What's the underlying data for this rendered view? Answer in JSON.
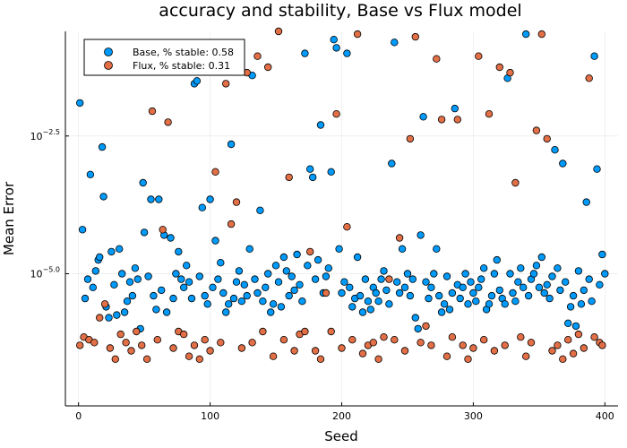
{
  "chart_data": {
    "type": "scatter",
    "title": "accuracy and stability, Base vs Flux model",
    "xlabel": "Seed",
    "ylabel": "Mean Error",
    "xlim": [
      -10,
      410
    ],
    "ylim": [
      -7.4,
      -0.6
    ],
    "log_scale_y": true,
    "grid": true,
    "legend_position": "top-left",
    "x_ticks": [
      0,
      100,
      200,
      300,
      400
    ],
    "x_tick_labels": [
      "0",
      "100",
      "200",
      "300",
      "400"
    ],
    "y_ticks": [
      -2.5,
      -5.0
    ],
    "y_tick_labels": [
      "10^{-2.5}",
      "10^{-5.0}"
    ],
    "series": [
      {
        "name": "Base, % stable: 0.58",
        "color": "#009AFA",
        "points": [
          [
            1,
            -1.9
          ],
          [
            3,
            -4.2
          ],
          [
            5,
            -5.45
          ],
          [
            7,
            -5.1
          ],
          [
            9,
            -3.2
          ],
          [
            11,
            -5.25
          ],
          [
            13,
            -4.95
          ],
          [
            15,
            -4.75
          ],
          [
            16,
            -4.7
          ],
          [
            18,
            -2.7
          ],
          [
            19,
            -3.6
          ],
          [
            21,
            -5.6
          ],
          [
            23,
            -5.8
          ],
          [
            25,
            -4.6
          ],
          [
            27,
            -5.2
          ],
          [
            29,
            -5.75
          ],
          [
            31,
            -4.55
          ],
          [
            33,
            -5.0
          ],
          [
            35,
            -5.7
          ],
          [
            37,
            -5.5
          ],
          [
            39,
            -5.15
          ],
          [
            41,
            -5.4
          ],
          [
            43,
            -4.9
          ],
          [
            45,
            -5.1
          ],
          [
            47,
            -6.0
          ],
          [
            49,
            -3.35
          ],
          [
            50,
            -4.25
          ],
          [
            52,
            -1.3
          ],
          [
            53,
            -5.05
          ],
          [
            55,
            -3.65
          ],
          [
            57,
            -5.4
          ],
          [
            59,
            -5.65
          ],
          [
            61,
            -3.65
          ],
          [
            63,
            -5.3
          ],
          [
            65,
            -4.3
          ],
          [
            67,
            -5.7
          ],
          [
            70,
            -4.35
          ],
          [
            72,
            -5.45
          ],
          [
            74,
            -5.0
          ],
          [
            76,
            -4.6
          ],
          [
            78,
            -5.1
          ],
          [
            80,
            -5.25
          ],
          [
            82,
            -4.85
          ],
          [
            84,
            -5.15
          ],
          [
            86,
            -5.45
          ],
          [
            88,
            -1.55
          ],
          [
            90,
            -1.5
          ],
          [
            92,
            -5.05
          ],
          [
            94,
            -3.8
          ],
          [
            96,
            -5.4
          ],
          [
            98,
            -5.55
          ],
          [
            100,
            -3.65
          ],
          [
            102,
            -5.25
          ],
          [
            104,
            -4.4
          ],
          [
            106,
            -5.1
          ],
          [
            108,
            -4.8
          ],
          [
            110,
            -5.35
          ],
          [
            112,
            -5.7
          ],
          [
            114,
            -5.55
          ],
          [
            116,
            -2.65
          ],
          [
            118,
            -5.45
          ],
          [
            120,
            -5.15
          ],
          [
            122,
            -4.95
          ],
          [
            124,
            -5.5
          ],
          [
            126,
            -5.2
          ],
          [
            128,
            -5.4
          ],
          [
            130,
            -4.55
          ],
          [
            132,
            -1.4
          ],
          [
            134,
            -5.1
          ],
          [
            136,
            -5.35
          ],
          [
            138,
            -3.85
          ],
          [
            140,
            -5.5
          ],
          [
            142,
            -5.25
          ],
          [
            144,
            -5.0
          ],
          [
            146,
            -5.7
          ],
          [
            148,
            -5.55
          ],
          [
            150,
            -4.85
          ],
          [
            152,
            -5.15
          ],
          [
            154,
            -5.6
          ],
          [
            156,
            -4.7
          ],
          [
            158,
            -4.95
          ],
          [
            160,
            -5.4
          ],
          [
            162,
            -5.05
          ],
          [
            164,
            -5.3
          ],
          [
            166,
            -4.65
          ],
          [
            168,
            -5.2
          ],
          [
            170,
            -5.5
          ],
          [
            172,
            -1.0
          ],
          [
            174,
            -4.85
          ],
          [
            176,
            -3.1
          ],
          [
            178,
            -3.25
          ],
          [
            180,
            -5.1
          ],
          [
            182,
            -4.75
          ],
          [
            184,
            -2.3
          ],
          [
            186,
            -5.35
          ],
          [
            188,
            -5.05
          ],
          [
            190,
            -4.9
          ],
          [
            192,
            -3.15
          ],
          [
            194,
            -0.75
          ],
          [
            196,
            -0.9
          ],
          [
            198,
            -4.55
          ],
          [
            200,
            -5.35
          ],
          [
            202,
            -5.15
          ],
          [
            204,
            -1.0
          ],
          [
            206,
            -5.25
          ],
          [
            208,
            -5.6
          ],
          [
            210,
            -5.45
          ],
          [
            212,
            -4.7
          ],
          [
            214,
            -5.4
          ],
          [
            216,
            -5.7
          ],
          [
            218,
            -5.1
          ],
          [
            220,
            -5.5
          ],
          [
            222,
            -5.65
          ],
          [
            224,
            -5.25
          ],
          [
            226,
            -5.35
          ],
          [
            228,
            -5.5
          ],
          [
            230,
            -5.1
          ],
          [
            232,
            -4.95
          ],
          [
            234,
            -5.3
          ],
          [
            236,
            -5.55
          ],
          [
            238,
            -3.0
          ],
          [
            240,
            -0.8
          ],
          [
            242,
            -5.15
          ],
          [
            244,
            -5.35
          ],
          [
            246,
            -4.55
          ],
          [
            248,
            -5.25
          ],
          [
            250,
            -5.0
          ],
          [
            252,
            -5.4
          ],
          [
            254,
            -5.1
          ],
          [
            256,
            -5.8
          ],
          [
            258,
            -6.0
          ],
          [
            260,
            -4.3
          ],
          [
            262,
            -2.15
          ],
          [
            264,
            -5.15
          ],
          [
            266,
            -5.45
          ],
          [
            268,
            -5.25
          ],
          [
            270,
            -5.0
          ],
          [
            272,
            -4.55
          ],
          [
            274,
            -5.4
          ],
          [
            276,
            -5.7
          ],
          [
            278,
            -5.55
          ],
          [
            280,
            -5.05
          ],
          [
            282,
            -5.65
          ],
          [
            284,
            -5.35
          ],
          [
            286,
            -2.0
          ],
          [
            288,
            -5.2
          ],
          [
            290,
            -5.45
          ],
          [
            292,
            -5.25
          ],
          [
            294,
            -5.0
          ],
          [
            296,
            -5.55
          ],
          [
            298,
            -5.15
          ],
          [
            300,
            -5.35
          ],
          [
            302,
            -5.5
          ],
          [
            304,
            -5.25
          ],
          [
            306,
            -5.1
          ],
          [
            308,
            -4.9
          ],
          [
            310,
            -5.65
          ],
          [
            312,
            -5.55
          ],
          [
            314,
            -5.4
          ],
          [
            316,
            -5.0
          ],
          [
            318,
            -4.75
          ],
          [
            320,
            -5.3
          ],
          [
            322,
            -5.45
          ],
          [
            324,
            -5.55
          ],
          [
            326,
            -1.45
          ],
          [
            328,
            -5.0
          ],
          [
            330,
            -5.35
          ],
          [
            332,
            -5.5
          ],
          [
            334,
            -5.15
          ],
          [
            336,
            -4.9
          ],
          [
            338,
            -5.25
          ],
          [
            340,
            -0.65
          ],
          [
            342,
            -5.4
          ],
          [
            344,
            -5.1
          ],
          [
            346,
            -5.0
          ],
          [
            348,
            -4.85
          ],
          [
            350,
            -5.25
          ],
          [
            352,
            -4.7
          ],
          [
            354,
            -5.35
          ],
          [
            356,
            -5.2
          ],
          [
            358,
            -5.45
          ],
          [
            360,
            -5.05
          ],
          [
            362,
            -2.75
          ],
          [
            364,
            -4.9
          ],
          [
            366,
            -5.3
          ],
          [
            368,
            -3.0
          ],
          [
            370,
            -5.15
          ],
          [
            372,
            -5.9
          ],
          [
            374,
            -5.6
          ],
          [
            376,
            -5.4
          ],
          [
            378,
            -5.95
          ],
          [
            380,
            -4.95
          ],
          [
            382,
            -5.55
          ],
          [
            384,
            -5.3
          ],
          [
            386,
            -3.7
          ],
          [
            388,
            -5.1
          ],
          [
            390,
            -5.5
          ],
          [
            392,
            -1.05
          ],
          [
            394,
            -3.1
          ],
          [
            396,
            -5.2
          ],
          [
            398,
            -4.65
          ],
          [
            400,
            -5.0
          ]
        ]
      },
      {
        "name": "Flux, % stable: 0.31",
        "color": "#E26F46",
        "points": [
          [
            1,
            -6.3
          ],
          [
            4,
            -6.15
          ],
          [
            8,
            -6.2
          ],
          [
            12,
            -6.25
          ],
          [
            16,
            -5.8
          ],
          [
            20,
            -5.55
          ],
          [
            24,
            -6.35
          ],
          [
            28,
            -6.55
          ],
          [
            32,
            -6.1
          ],
          [
            36,
            -6.25
          ],
          [
            40,
            -6.4
          ],
          [
            44,
            -6.05
          ],
          [
            48,
            -6.3
          ],
          [
            52,
            -6.55
          ],
          [
            56,
            -2.05
          ],
          [
            60,
            -6.2
          ],
          [
            64,
            -4.2
          ],
          [
            68,
            -2.25
          ],
          [
            72,
            -6.35
          ],
          [
            76,
            -6.05
          ],
          [
            80,
            -6.1
          ],
          [
            84,
            -6.5
          ],
          [
            88,
            -6.3
          ],
          [
            92,
            -6.55
          ],
          [
            96,
            -6.2
          ],
          [
            100,
            -6.4
          ],
          [
            104,
            -3.15
          ],
          [
            108,
            -6.25
          ],
          [
            112,
            -1.55
          ],
          [
            116,
            -4.1
          ],
          [
            120,
            -3.7
          ],
          [
            124,
            -6.35
          ],
          [
            128,
            -1.35
          ],
          [
            132,
            -6.25
          ],
          [
            136,
            -1.05
          ],
          [
            140,
            -6.05
          ],
          [
            144,
            -1.25
          ],
          [
            148,
            -6.5
          ],
          [
            152,
            -0.6
          ],
          [
            156,
            -6.2
          ],
          [
            160,
            -3.25
          ],
          [
            164,
            -6.4
          ],
          [
            168,
            -6.1
          ],
          [
            172,
            -6.05
          ],
          [
            176,
            -4.6
          ],
          [
            180,
            -6.4
          ],
          [
            184,
            -6.55
          ],
          [
            188,
            -5.35
          ],
          [
            192,
            -6.05
          ],
          [
            196,
            -2.1
          ],
          [
            200,
            -6.35
          ],
          [
            204,
            -4.15
          ],
          [
            208,
            -6.2
          ],
          [
            212,
            -0.65
          ],
          [
            216,
            -6.45
          ],
          [
            220,
            -6.3
          ],
          [
            224,
            -6.25
          ],
          [
            228,
            -6.55
          ],
          [
            232,
            -6.15
          ],
          [
            236,
            -5.1
          ],
          [
            240,
            -6.2
          ],
          [
            244,
            -4.35
          ],
          [
            248,
            -6.4
          ],
          [
            252,
            -2.55
          ],
          [
            256,
            -0.7
          ],
          [
            260,
            -6.25
          ],
          [
            264,
            -5.95
          ],
          [
            268,
            -6.3
          ],
          [
            272,
            -1.1
          ],
          [
            276,
            -2.2
          ],
          [
            280,
            -6.5
          ],
          [
            284,
            -6.15
          ],
          [
            288,
            -2.2
          ],
          [
            292,
            -6.3
          ],
          [
            296,
            -6.55
          ],
          [
            300,
            -6.35
          ],
          [
            304,
            -1.05
          ],
          [
            308,
            -6.2
          ],
          [
            312,
            -2.1
          ],
          [
            316,
            -6.4
          ],
          [
            320,
            -1.25
          ],
          [
            324,
            -6.3
          ],
          [
            328,
            -1.35
          ],
          [
            332,
            -3.35
          ],
          [
            336,
            -6.15
          ],
          [
            340,
            -6.5
          ],
          [
            344,
            -6.25
          ],
          [
            348,
            -2.4
          ],
          [
            352,
            -0.65
          ],
          [
            356,
            -2.55
          ],
          [
            360,
            -6.4
          ],
          [
            364,
            -6.3
          ],
          [
            368,
            -6.55
          ],
          [
            372,
            -6.2
          ],
          [
            376,
            -6.45
          ],
          [
            380,
            -6.1
          ],
          [
            384,
            -6.35
          ],
          [
            388,
            -1.45
          ],
          [
            392,
            -6.15
          ],
          [
            396,
            -6.25
          ],
          [
            398,
            -6.3
          ]
        ]
      }
    ]
  }
}
